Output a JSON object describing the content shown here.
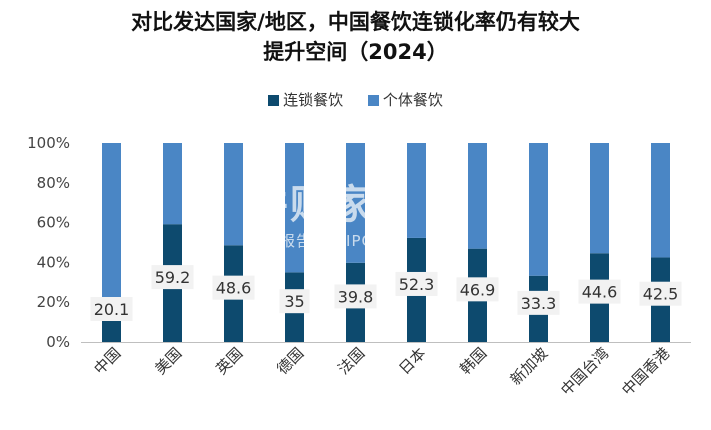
{
  "title_line1": "对比发达国家/地区，中国餐饮连锁化率仍有较大",
  "title_line2": "提升空间（2024）",
  "watermark": {
    "logo": "并购家",
    "sub": "行业报告 IPOIPO.CN"
  },
  "colors": {
    "chain": "#0d4a6e",
    "independent": "#4a86c5",
    "label_bg": "#f2f2f2"
  },
  "chart_data": {
    "type": "bar",
    "stacked": true,
    "title": "对比发达国家/地区，中国餐饮连锁化率仍有较大提升空间（2024）",
    "categories": [
      "中国",
      "美国",
      "英国",
      "德国",
      "法国",
      "日本",
      "韩国",
      "新加坡",
      "中国台湾",
      "中国香港"
    ],
    "series": [
      {
        "name": "连锁餐饮",
        "values": [
          20.1,
          59.2,
          48.6,
          35,
          39.8,
          52.3,
          46.9,
          33.3,
          44.6,
          42.5
        ]
      },
      {
        "name": "个体餐饮",
        "values": [
          79.9,
          40.8,
          51.4,
          65,
          60.2,
          47.7,
          53.1,
          66.7,
          55.4,
          57.5
        ]
      }
    ],
    "data_labels": [
      "20.1",
      "59.2",
      "48.6",
      "35",
      "39.8",
      "52.3",
      "46.9",
      "33.3",
      "44.6",
      "42.5"
    ],
    "yticks": [
      "0%",
      "20%",
      "40%",
      "60%",
      "80%",
      "100%"
    ],
    "ylim": [
      0,
      100
    ],
    "xlabel": "",
    "ylabel": "",
    "legend_position": "top",
    "grid": false
  }
}
